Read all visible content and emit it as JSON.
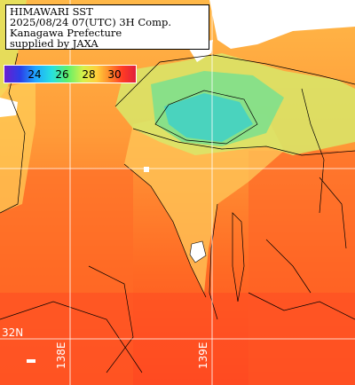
{
  "title_box": {
    "lines": [
      "HIMAWARI SST",
      "2025/08/24 07(UTC) 3H Comp.",
      "Kanagawa Prefecture",
      "supplied by JAXA"
    ]
  },
  "colorbar": {
    "ticks": [
      {
        "label": "24",
        "value": 24
      },
      {
        "label": "26",
        "value": 26
      },
      {
        "label": "28",
        "value": 28
      },
      {
        "label": "30",
        "value": 30
      }
    ],
    "range": [
      22,
      31.5
    ]
  },
  "graticule": {
    "lat_label": "32N",
    "lon_labels": [
      "138E",
      "139E"
    ]
  },
  "colors": {
    "land": "#ffffff",
    "cloud": "#ffffff",
    "offshore": "#ff7a28",
    "coastal_cool": "#5fd6a0",
    "grid": "#ffffff"
  }
}
